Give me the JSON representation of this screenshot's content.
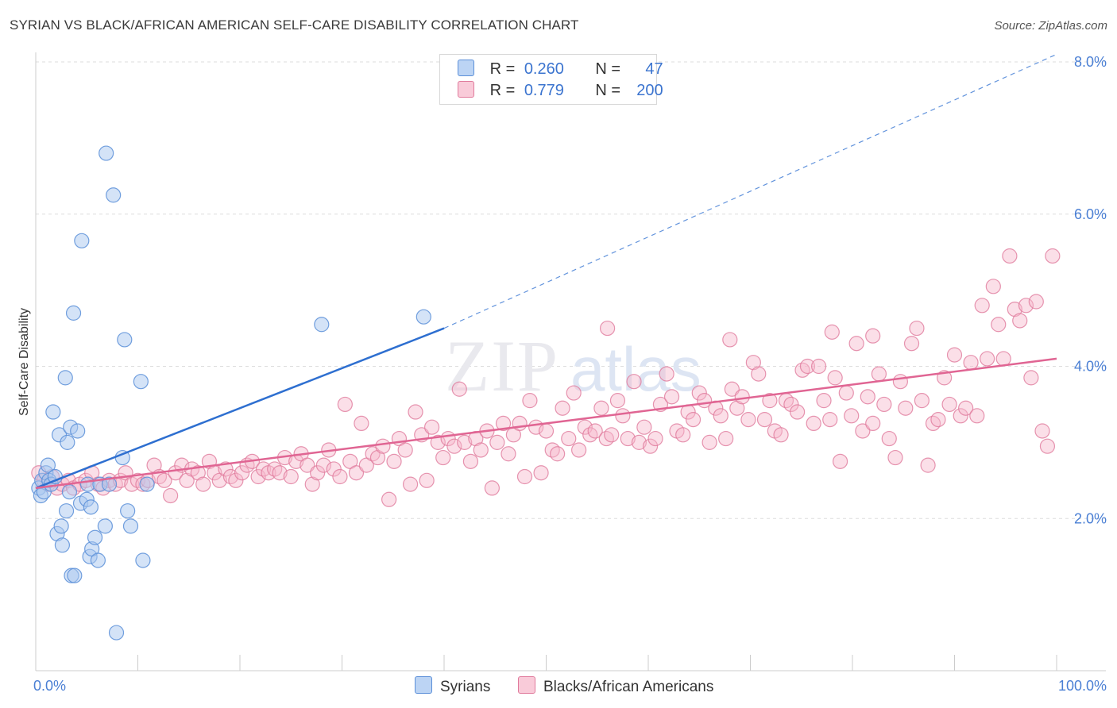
{
  "title": "SYRIAN VS BLACK/AFRICAN AMERICAN SELF-CARE DISABILITY CORRELATION CHART",
  "source": "Source: ZipAtlas.com",
  "legend": {
    "rows": [
      {
        "r_label": "R =",
        "r_value": "0.260",
        "n_label": "N =",
        "n_value": "47"
      },
      {
        "r_label": "R =",
        "r_value": "0.779",
        "n_label": "N =",
        "n_value": "200"
      }
    ]
  },
  "bottom_legend": {
    "syrians": "Syrians",
    "blacks": "Blacks/African Americans"
  },
  "colors": {
    "syrians_fill": "#a9c8f0",
    "syrians_stroke": "#5b8fd8",
    "syrians_line": "#2e6fd0",
    "blacks_fill": "#f6b8cb",
    "blacks_stroke": "#e07a9c",
    "blacks_line": "#e06593",
    "tick_text": "#4a7fd4",
    "grid": "#dddddd"
  },
  "chart_data": {
    "type": "scatter",
    "title": "SYRIAN VS BLACK/AFRICAN AMERICAN SELF-CARE DISABILITY CORRELATION CHART",
    "xlabel": "",
    "ylabel": "Self-Care Disability",
    "xlim": [
      0,
      100
    ],
    "ylim": [
      0,
      8.0
    ],
    "x_tick_labels": [
      "0.0%",
      "100.0%"
    ],
    "y_ticks": [
      2.0,
      4.0,
      6.0,
      8.0
    ],
    "y_tick_labels": [
      "2.0%",
      "4.0%",
      "6.0%",
      "8.0%"
    ],
    "grid": "horizontal dashed",
    "legend_position": "top-center",
    "series": [
      {
        "name": "Syrians",
        "R": 0.26,
        "N": 47,
        "trend": {
          "x": [
            0,
            40
          ],
          "y": [
            2.4,
            4.5
          ],
          "extended_dashed_to": [
            100,
            8.1
          ]
        },
        "points": [
          [
            0.3,
            2.4
          ],
          [
            0.5,
            2.3
          ],
          [
            0.6,
            2.5
          ],
          [
            0.8,
            2.35
          ],
          [
            1.0,
            2.6
          ],
          [
            1.2,
            2.7
          ],
          [
            1.3,
            2.5
          ],
          [
            1.5,
            2.45
          ],
          [
            1.7,
            3.4
          ],
          [
            1.9,
            2.55
          ],
          [
            2.1,
            1.8
          ],
          [
            2.3,
            3.1
          ],
          [
            2.5,
            1.9
          ],
          [
            2.6,
            1.65
          ],
          [
            2.9,
            3.85
          ],
          [
            3.0,
            2.1
          ],
          [
            3.1,
            3.0
          ],
          [
            3.3,
            2.35
          ],
          [
            3.4,
            3.2
          ],
          [
            3.5,
            1.25
          ],
          [
            3.7,
            4.7
          ],
          [
            3.8,
            1.25
          ],
          [
            4.1,
            3.15
          ],
          [
            4.4,
            2.2
          ],
          [
            4.5,
            5.65
          ],
          [
            5.0,
            2.25
          ],
          [
            5.1,
            2.45
          ],
          [
            5.3,
            1.5
          ],
          [
            5.4,
            2.15
          ],
          [
            5.5,
            1.6
          ],
          [
            5.8,
            1.75
          ],
          [
            6.1,
            1.45
          ],
          [
            6.3,
            2.45
          ],
          [
            6.8,
            1.9
          ],
          [
            6.9,
            6.8
          ],
          [
            7.2,
            2.45
          ],
          [
            7.6,
            6.25
          ],
          [
            7.9,
            0.5
          ],
          [
            8.5,
            2.8
          ],
          [
            8.7,
            4.35
          ],
          [
            9.0,
            2.1
          ],
          [
            9.3,
            1.9
          ],
          [
            10.3,
            3.8
          ],
          [
            10.5,
            1.45
          ],
          [
            10.9,
            2.45
          ],
          [
            28.0,
            4.55
          ],
          [
            38.0,
            4.65
          ]
        ]
      },
      {
        "name": "Blacks/African Americans",
        "R": 0.779,
        "N": 200,
        "trend": {
          "x": [
            0,
            100
          ],
          "y": [
            2.4,
            4.1
          ]
        },
        "points": [
          [
            0.3,
            2.6
          ],
          [
            0.8,
            2.5
          ],
          [
            1.2,
            2.45
          ],
          [
            1.6,
            2.55
          ],
          [
            2.1,
            2.4
          ],
          [
            2.6,
            2.45
          ],
          [
            3.2,
            2.5
          ],
          [
            3.7,
            2.4
          ],
          [
            4.3,
            2.45
          ],
          [
            4.9,
            2.5
          ],
          [
            5.5,
            2.6
          ],
          [
            6.1,
            2.45
          ],
          [
            6.6,
            2.4
          ],
          [
            7.2,
            2.5
          ],
          [
            7.8,
            2.45
          ],
          [
            8.3,
            2.5
          ],
          [
            8.8,
            2.6
          ],
          [
            9.4,
            2.45
          ],
          [
            10.0,
            2.5
          ],
          [
            10.5,
            2.45
          ],
          [
            11.0,
            2.5
          ],
          [
            11.6,
            2.7
          ],
          [
            12.1,
            2.55
          ],
          [
            12.6,
            2.5
          ],
          [
            13.2,
            2.3
          ],
          [
            13.7,
            2.6
          ],
          [
            14.3,
            2.7
          ],
          [
            14.8,
            2.5
          ],
          [
            15.3,
            2.65
          ],
          [
            15.9,
            2.6
          ],
          [
            16.4,
            2.45
          ],
          [
            17.0,
            2.75
          ],
          [
            17.5,
            2.6
          ],
          [
            18.0,
            2.5
          ],
          [
            18.6,
            2.65
          ],
          [
            19.1,
            2.55
          ],
          [
            19.6,
            2.5
          ],
          [
            20.2,
            2.6
          ],
          [
            20.7,
            2.7
          ],
          [
            21.2,
            2.75
          ],
          [
            21.8,
            2.55
          ],
          [
            22.3,
            2.65
          ],
          [
            22.8,
            2.6
          ],
          [
            23.4,
            2.65
          ],
          [
            23.9,
            2.6
          ],
          [
            24.4,
            2.8
          ],
          [
            25.0,
            2.55
          ],
          [
            25.5,
            2.75
          ],
          [
            26.0,
            2.85
          ],
          [
            26.6,
            2.7
          ],
          [
            27.1,
            2.45
          ],
          [
            27.6,
            2.6
          ],
          [
            28.2,
            2.7
          ],
          [
            28.7,
            2.9
          ],
          [
            29.2,
            2.65
          ],
          [
            29.8,
            2.55
          ],
          [
            30.3,
            3.5
          ],
          [
            30.8,
            2.75
          ],
          [
            31.4,
            2.6
          ],
          [
            31.9,
            3.25
          ],
          [
            32.4,
            2.7
          ],
          [
            33.0,
            2.85
          ],
          [
            33.5,
            2.8
          ],
          [
            34.0,
            2.95
          ],
          [
            34.6,
            2.25
          ],
          [
            35.1,
            2.75
          ],
          [
            35.6,
            3.05
          ],
          [
            36.2,
            2.9
          ],
          [
            36.7,
            2.45
          ],
          [
            37.2,
            3.4
          ],
          [
            37.8,
            3.1
          ],
          [
            38.3,
            2.5
          ],
          [
            38.8,
            3.2
          ],
          [
            39.4,
            3.0
          ],
          [
            39.9,
            2.8
          ],
          [
            40.4,
            3.05
          ],
          [
            41.0,
            2.95
          ],
          [
            41.5,
            3.7
          ],
          [
            42.0,
            3.0
          ],
          [
            42.6,
            2.75
          ],
          [
            43.1,
            3.05
          ],
          [
            43.6,
            2.9
          ],
          [
            44.2,
            3.15
          ],
          [
            44.7,
            2.4
          ],
          [
            45.2,
            3.0
          ],
          [
            45.8,
            3.25
          ],
          [
            46.3,
            2.85
          ],
          [
            46.8,
            3.1
          ],
          [
            47.4,
            3.25
          ],
          [
            47.9,
            2.55
          ],
          [
            48.4,
            3.55
          ],
          [
            49.0,
            3.2
          ],
          [
            49.5,
            2.6
          ],
          [
            50.0,
            3.15
          ],
          [
            50.6,
            2.9
          ],
          [
            51.1,
            2.85
          ],
          [
            51.6,
            3.45
          ],
          [
            52.2,
            3.05
          ],
          [
            52.7,
            3.65
          ],
          [
            53.2,
            2.9
          ],
          [
            53.8,
            3.2
          ],
          [
            54.3,
            3.1
          ],
          [
            54.8,
            3.15
          ],
          [
            55.4,
            3.45
          ],
          [
            55.9,
            3.05
          ],
          [
            56.4,
            3.1
          ],
          [
            57.0,
            3.55
          ],
          [
            57.5,
            3.35
          ],
          [
            58.0,
            3.05
          ],
          [
            58.6,
            3.8
          ],
          [
            59.1,
            3.0
          ],
          [
            59.6,
            3.2
          ],
          [
            60.2,
            2.95
          ],
          [
            60.7,
            3.05
          ],
          [
            61.2,
            3.5
          ],
          [
            61.8,
            3.9
          ],
          [
            62.3,
            3.6
          ],
          [
            62.8,
            3.15
          ],
          [
            63.4,
            3.1
          ],
          [
            63.9,
            3.4
          ],
          [
            64.4,
            3.3
          ],
          [
            65.0,
            3.65
          ],
          [
            65.5,
            3.55
          ],
          [
            66.0,
            3.0
          ],
          [
            66.6,
            3.45
          ],
          [
            67.1,
            3.35
          ],
          [
            67.6,
            3.05
          ],
          [
            68.2,
            3.7
          ],
          [
            68.7,
            3.45
          ],
          [
            69.2,
            3.6
          ],
          [
            69.8,
            3.3
          ],
          [
            70.3,
            4.05
          ],
          [
            70.8,
            3.9
          ],
          [
            71.4,
            3.3
          ],
          [
            71.9,
            3.55
          ],
          [
            72.4,
            3.15
          ],
          [
            73.0,
            3.1
          ],
          [
            73.5,
            3.55
          ],
          [
            74.0,
            3.5
          ],
          [
            74.6,
            3.4
          ],
          [
            75.1,
            3.95
          ],
          [
            75.6,
            4.0
          ],
          [
            76.2,
            3.25
          ],
          [
            76.7,
            4.0
          ],
          [
            77.2,
            3.55
          ],
          [
            77.8,
            3.3
          ],
          [
            78.3,
            3.85
          ],
          [
            78.8,
            2.75
          ],
          [
            79.4,
            3.65
          ],
          [
            79.9,
            3.35
          ],
          [
            80.4,
            4.3
          ],
          [
            81.0,
            3.15
          ],
          [
            81.5,
            3.6
          ],
          [
            82.0,
            3.25
          ],
          [
            82.6,
            3.9
          ],
          [
            83.1,
            3.5
          ],
          [
            83.6,
            3.05
          ],
          [
            84.2,
            2.8
          ],
          [
            84.7,
            3.8
          ],
          [
            85.2,
            3.45
          ],
          [
            85.8,
            4.3
          ],
          [
            86.3,
            4.5
          ],
          [
            86.8,
            3.55
          ],
          [
            87.4,
            2.7
          ],
          [
            87.9,
            3.25
          ],
          [
            88.4,
            3.3
          ],
          [
            89.0,
            3.85
          ],
          [
            89.5,
            3.5
          ],
          [
            90.0,
            4.15
          ],
          [
            90.6,
            3.35
          ],
          [
            91.1,
            3.45
          ],
          [
            91.6,
            4.05
          ],
          [
            92.2,
            3.35
          ],
          [
            92.7,
            4.8
          ],
          [
            93.2,
            4.1
          ],
          [
            93.8,
            5.05
          ],
          [
            94.3,
            4.55
          ],
          [
            94.8,
            4.1
          ],
          [
            95.4,
            5.45
          ],
          [
            95.9,
            4.75
          ],
          [
            96.4,
            4.6
          ],
          [
            97.0,
            4.8
          ],
          [
            97.5,
            3.85
          ],
          [
            98.0,
            4.85
          ],
          [
            98.6,
            3.15
          ],
          [
            99.1,
            2.95
          ],
          [
            99.6,
            5.45
          ],
          [
            56.0,
            4.5
          ],
          [
            78.0,
            4.45
          ],
          [
            68.0,
            4.35
          ],
          [
            82.0,
            4.4
          ]
        ]
      }
    ]
  }
}
